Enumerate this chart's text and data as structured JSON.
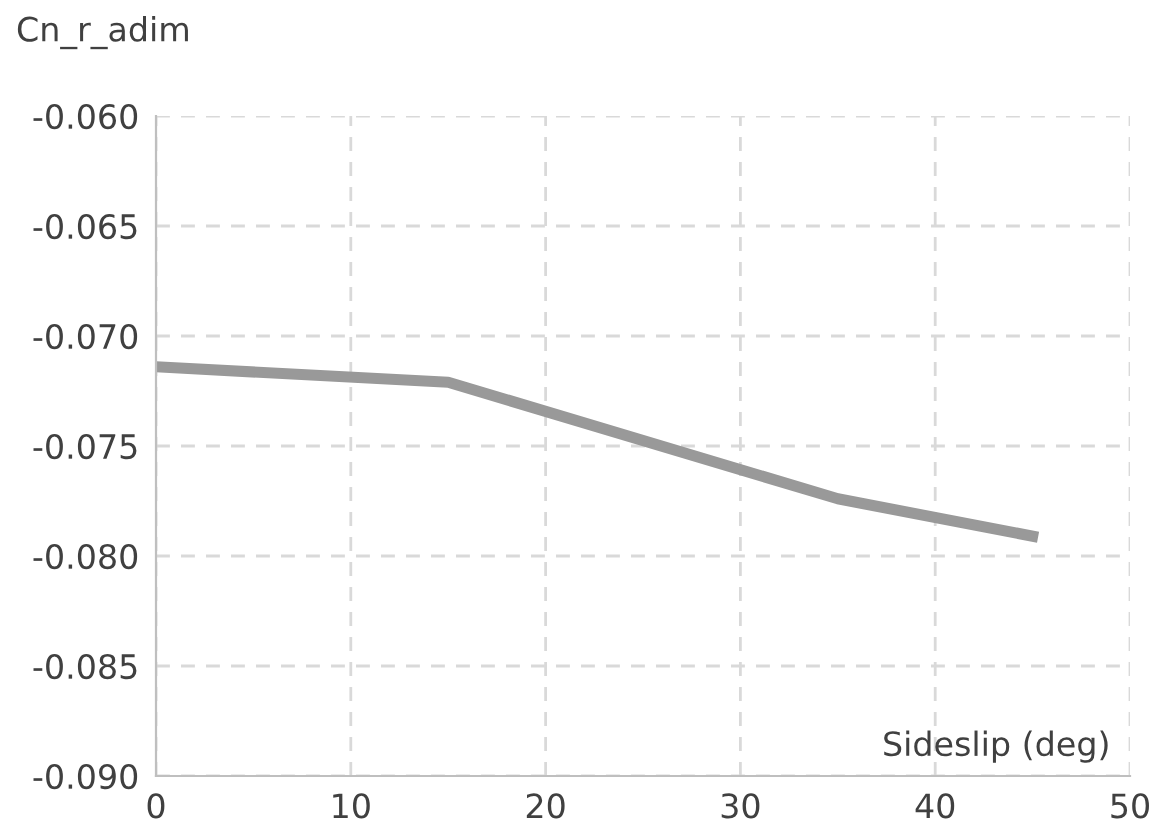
{
  "chart_data": {
    "type": "line",
    "xlabel": "Sideslip (deg)",
    "ylabel": "Cn_r_adim",
    "x": [
      0,
      15,
      35,
      45
    ],
    "series": [
      {
        "color": "#999999",
        "values": [
          -0.0714,
          -0.0721,
          -0.0774,
          -0.0791
        ]
      }
    ],
    "xlim": [
      0,
      50
    ],
    "xticks": [
      0,
      10,
      20,
      30,
      40,
      50
    ],
    "ylim": [
      -0.09,
      -0.06
    ],
    "yticks": [
      {
        "value": -0.09,
        "label": "-0.090"
      },
      {
        "value": -0.085,
        "label": "-0.085"
      },
      {
        "value": -0.08,
        "label": "-0.080"
      },
      {
        "value": -0.075,
        "label": "-0.075"
      },
      {
        "value": -0.07,
        "label": "-0.070"
      },
      {
        "value": -0.065,
        "label": "-0.065"
      },
      {
        "value": -0.06,
        "label": "-0.060"
      }
    ],
    "grid": true,
    "marker": "none",
    "line_style": "solid"
  }
}
